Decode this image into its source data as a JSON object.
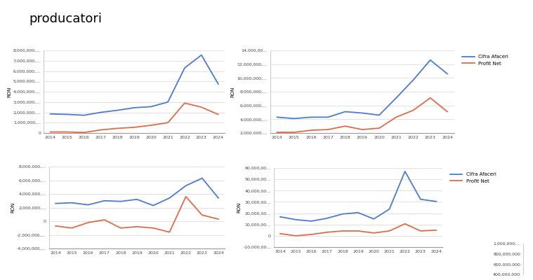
{
  "title": "producatori",
  "chart_data": [
    {
      "type": "line",
      "y_label": "RON",
      "x": [
        2014,
        2015,
        2016,
        2017,
        2018,
        2019,
        2020,
        2021,
        2022,
        2023,
        2024
      ],
      "xlim": [
        2013.6,
        2024.4
      ],
      "xticks": [
        2014,
        2015,
        2016,
        2017,
        2018,
        2019,
        2020,
        2021,
        2022,
        2023,
        2024
      ],
      "ylim": [
        0,
        8000000
      ],
      "yticks": [
        0,
        {
          "value": 1000000,
          "label": "1,000,000,..."
        },
        {
          "value": 2000000,
          "label": "2,000,000,..."
        },
        {
          "value": 3000000,
          "label": "3,000,000,..."
        },
        {
          "value": 4000000,
          "label": "4,000,000,..."
        },
        {
          "value": 5000000,
          "label": "5,000,000,..."
        },
        {
          "value": 6000000,
          "label": "6,000,000,..."
        },
        {
          "value": 7000000,
          "label": "7,000,000,..."
        },
        {
          "value": 8000000,
          "label": "8,000,000,..."
        }
      ],
      "grid": true,
      "series": [
        {
          "color": "#4a7bd0",
          "values": [
            1850000,
            1800000,
            1720000,
            2000000,
            2200000,
            2450000,
            2550000,
            3000000,
            6300000,
            7550000,
            4750000
          ]
        },
        {
          "color": "#e06a4a",
          "values": [
            100000,
            100000,
            50000,
            300000,
            450000,
            550000,
            750000,
            1000000,
            2900000,
            2500000,
            1800000
          ]
        }
      ]
    },
    {
      "type": "line",
      "y_label": "RON",
      "x": [
        2014,
        2015,
        2016,
        2017,
        2018,
        2019,
        2020,
        2021,
        2022,
        2023,
        2024
      ],
      "xlim": [
        2013.6,
        2024.4
      ],
      "xticks": [
        2014,
        2015,
        2016,
        2017,
        2018,
        2019,
        2020,
        2021,
        2022,
        2023,
        2024
      ],
      "ylim": [
        2000000,
        14000000
      ],
      "yticks": [
        {
          "value": 2000000,
          "label": "2,000,000,..."
        },
        {
          "value": 4000000,
          "label": "4,000,000,..."
        },
        {
          "value": 6000000,
          "label": "6,000,000,..."
        },
        {
          "value": 8000000,
          "label": "8,000,000,..."
        },
        {
          "value": 10000000,
          "label": "10,000,000,..."
        },
        {
          "value": 12000000,
          "label": "12,000,000,..."
        },
        {
          "value": 14000000,
          "label": "14,000,00..."
        }
      ],
      "grid": true,
      "legend": "upper left",
      "series": [
        {
          "name": "Cifra Afaceri",
          "color": "#4a7bd0",
          "values": [
            4300000,
            4100000,
            4300000,
            4300000,
            5100000,
            4900000,
            4600000,
            7100000,
            9700000,
            12600000,
            10600000
          ]
        },
        {
          "name": "Profit Net",
          "color": "#e06a4a",
          "values": [
            2100000,
            2100000,
            2400000,
            2500000,
            3000000,
            2500000,
            2700000,
            4300000,
            5300000,
            7100000,
            5100000
          ]
        }
      ]
    },
    {
      "type": "line",
      "y_label": "RON",
      "x": [
        2014,
        2015,
        2016,
        2017,
        2018,
        2019,
        2020,
        2021,
        2022,
        2023,
        2024
      ],
      "xlim": [
        2013.6,
        2024.4
      ],
      "xticks": [
        2014,
        2015,
        2016,
        2017,
        2018,
        2019,
        2020,
        2021,
        2022,
        2023,
        2024
      ],
      "ylim": [
        -4000000,
        8000000
      ],
      "yticks": [
        {
          "value": -4000000,
          "label": "-4,000,000,..."
        },
        {
          "value": -2000000,
          "label": "-2,000,000,..."
        },
        0,
        {
          "value": 2000000,
          "label": "2,000,000,..."
        },
        {
          "value": 4000000,
          "label": "4,000,000,..."
        },
        {
          "value": 6000000,
          "label": "6,000,000,..."
        },
        {
          "value": 8000000,
          "label": "8,000,000,..."
        }
      ],
      "grid": true,
      "series": [
        {
          "color": "#4a7bd0",
          "values": [
            2600000,
            2700000,
            2400000,
            3000000,
            2900000,
            3200000,
            2300000,
            3400000,
            5200000,
            6300000,
            3400000
          ]
        },
        {
          "color": "#e06a4a",
          "values": [
            -700000,
            -1000000,
            -200000,
            200000,
            -1000000,
            -800000,
            -1000000,
            -1600000,
            3600000,
            900000,
            300000
          ]
        }
      ]
    },
    {
      "type": "line",
      "y_label": "RON",
      "x": [
        2014,
        2015,
        2016,
        2017,
        2018,
        2019,
        2020,
        2021,
        2022,
        2023,
        2024
      ],
      "xlim": [
        2013.6,
        2024.4
      ],
      "xticks": [
        2014,
        2015,
        2016,
        2017,
        2018,
        2019,
        2020,
        2021,
        2022,
        2023,
        2024
      ],
      "ylim": [
        -10000000,
        60000000
      ],
      "yticks": [
        {
          "value": -10000000,
          "label": "-10,000,00..."
        },
        0,
        {
          "value": 10000000,
          "label": "10,000,00..."
        },
        {
          "value": 20000000,
          "label": "20,000,00..."
        },
        {
          "value": 30000000,
          "label": "30,000,00..."
        },
        {
          "value": 40000000,
          "label": "40,000,00..."
        },
        {
          "value": 50000000,
          "label": "50,000,00..."
        },
        {
          "value": 60000000,
          "label": "60,000,00..."
        }
      ],
      "grid": true,
      "legend": "upper left",
      "series": [
        {
          "name": "Cifra Afaceri",
          "color": "#4a7bd0",
          "values": [
            16800000,
            14300000,
            13000000,
            15500000,
            19300000,
            20500000,
            14900000,
            23600000,
            57000000,
            32300000,
            30400000
          ]
        },
        {
          "name": "Profit Net",
          "color": "#e06a4a",
          "values": [
            1900000,
            0,
            1200000,
            3100000,
            4300000,
            4300000,
            2500000,
            4300000,
            10600000,
            4300000,
            5000000
          ]
        }
      ]
    },
    {
      "type": "line",
      "tick_labels": "y",
      "ylim": [
        400000000,
        1000000000
      ],
      "yticks": [
        {
          "value": 400000000,
          "label": "400,000,000"
        },
        {
          "value": 600000000,
          "label": "600,000,000"
        },
        {
          "value": 800000000,
          "label": "800,000,000"
        },
        {
          "value": 1000000000,
          "label": "1,000,000,..."
        }
      ]
    }
  ]
}
